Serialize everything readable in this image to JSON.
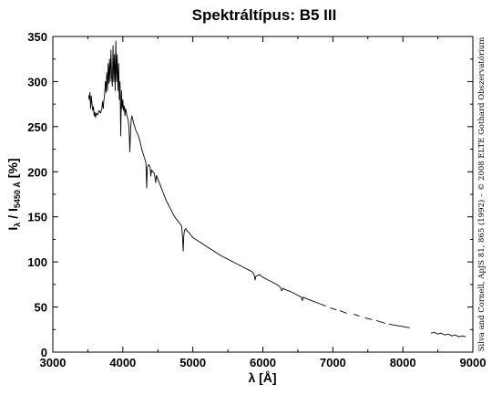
{
  "chart_data": {
    "type": "line",
    "title": "Spektráltípus: B5 III",
    "xlabel": "λ [Å]",
    "ylabel": {
      "main": "I",
      "sub1": "λ",
      "mid": " / I",
      "sub2": "5450 Å",
      "end": " [%]"
    },
    "credit": "Silva and Cornell, ApJS 81, 865 (1992) – © 2008 ELTE Gothard Obszervatórium",
    "xlim": [
      3000,
      9000
    ],
    "ylim": [
      0,
      350
    ],
    "xticks": [
      3000,
      4000,
      5000,
      6000,
      7000,
      8000,
      9000
    ],
    "yticks": [
      0,
      50,
      100,
      150,
      200,
      250,
      300,
      350
    ],
    "grid": false,
    "series": [
      {
        "segments": [
          [
            [
              3510,
              285
            ],
            [
              3520,
              280
            ],
            [
              3530,
              288
            ],
            [
              3540,
              270
            ],
            [
              3550,
              284
            ],
            [
              3560,
              275
            ],
            [
              3570,
              268
            ],
            [
              3580,
              272
            ],
            [
              3590,
              262
            ],
            [
              3600,
              266
            ],
            [
              3610,
              260
            ],
            [
              3620,
              265
            ],
            [
              3640,
              263
            ],
            [
              3660,
              268
            ],
            [
              3680,
              265
            ],
            [
              3700,
              270
            ],
            [
              3710,
              278
            ],
            [
              3720,
              270
            ],
            [
              3730,
              280
            ],
            [
              3740,
              285
            ],
            [
              3750,
              300
            ],
            [
              3760,
              288
            ],
            [
              3770,
              310
            ],
            [
              3780,
              290
            ],
            [
              3790,
              320
            ],
            [
              3800,
              298
            ],
            [
              3810,
              325
            ],
            [
              3820,
              300
            ],
            [
              3830,
              335
            ],
            [
              3840,
              305
            ],
            [
              3850,
              295
            ],
            [
              3860,
              340
            ],
            [
              3870,
              300
            ],
            [
              3880,
              330
            ],
            [
              3890,
              290
            ],
            [
              3900,
              345
            ],
            [
              3910,
              300
            ],
            [
              3920,
              330
            ],
            [
              3930,
              290
            ],
            [
              3940,
              320
            ],
            [
              3950,
              280
            ],
            [
              3960,
              300
            ],
            [
              3970,
              240
            ],
            [
              3980,
              290
            ],
            [
              3990,
              270
            ],
            [
              4000,
              280
            ],
            [
              4010,
              268
            ],
            [
              4020,
              273
            ],
            [
              4030,
              262
            ],
            [
              4040,
              270
            ],
            [
              4060,
              262
            ],
            [
              4080,
              255
            ],
            [
              4090,
              245
            ],
            [
              4100,
              222
            ],
            [
              4110,
              245
            ],
            [
              4120,
              258
            ],
            [
              4130,
              262
            ],
            [
              4150,
              255
            ],
            [
              4170,
              250
            ],
            [
              4190,
              245
            ],
            [
              4210,
              242
            ],
            [
              4230,
              238
            ],
            [
              4250,
              232
            ],
            [
              4270,
              225
            ],
            [
              4290,
              220
            ],
            [
              4310,
              215
            ],
            [
              4330,
              210
            ],
            [
              4340,
              182
            ],
            [
              4350,
              205
            ],
            [
              4370,
              208
            ],
            [
              4390,
              205
            ],
            [
              4400,
              195
            ],
            [
              4410,
              202
            ],
            [
              4430,
              200
            ],
            [
              4450,
              198
            ],
            [
              4470,
              188
            ],
            [
              4480,
              196
            ],
            [
              4500,
              192
            ],
            [
              4520,
              188
            ],
            [
              4540,
              184
            ],
            [
              4560,
              180
            ],
            [
              4580,
              176
            ],
            [
              4600,
              172
            ],
            [
              4620,
              168
            ],
            [
              4640,
              165
            ],
            [
              4660,
              162
            ],
            [
              4680,
              159
            ],
            [
              4700,
              156
            ],
            [
              4720,
              153
            ],
            [
              4740,
              150
            ],
            [
              4760,
              148
            ],
            [
              4780,
              146
            ],
            [
              4800,
              144
            ],
            [
              4820,
              142
            ],
            [
              4840,
              140
            ],
            [
              4855,
              125
            ],
            [
              4862,
              112
            ],
            [
              4870,
              128
            ],
            [
              4880,
              135
            ],
            [
              4900,
              137
            ],
            [
              4920,
              134
            ],
            [
              4940,
              133
            ],
            [
              4960,
              131
            ],
            [
              4980,
              129
            ],
            [
              5000,
              127
            ],
            [
              5100,
              122
            ],
            [
              5200,
              117
            ],
            [
              5300,
              112
            ],
            [
              5400,
              107
            ],
            [
              5500,
              103
            ],
            [
              5600,
              99
            ],
            [
              5700,
              95
            ],
            [
              5800,
              91
            ],
            [
              5850,
              89
            ],
            [
              5875,
              86
            ],
            [
              5890,
              80
            ],
            [
              5900,
              84
            ],
            [
              5950,
              86
            ],
            [
              6000,
              83
            ],
            [
              6100,
              79
            ],
            [
              6200,
              75
            ],
            [
              6250,
              72
            ],
            [
              6270,
              68
            ],
            [
              6290,
              71
            ],
            [
              6300,
              70
            ],
            [
              6400,
              67
            ],
            [
              6500,
              63
            ],
            [
              6550,
              61
            ],
            [
              6563,
              57
            ],
            [
              6575,
              61
            ],
            [
              6600,
              60
            ],
            [
              6700,
              57
            ],
            [
              6800,
              54
            ],
            [
              6900,
              51
            ]
          ],
          [
            [
              6960,
              49
            ],
            [
              7050,
              47
            ]
          ],
          [
            [
              7100,
              46
            ],
            [
              7200,
              43
            ]
          ],
          [
            [
              7300,
              42
            ],
            [
              7380,
              40
            ]
          ],
          [
            [
              7460,
              38
            ],
            [
              7560,
              36
            ]
          ],
          [
            [
              7620,
              35
            ],
            [
              7750,
              32
            ]
          ],
          [
            [
              7800,
              31
            ],
            [
              8100,
              27
            ]
          ],
          [
            [
              8400,
              21
            ],
            [
              8450,
              22
            ],
            [
              8500,
              20
            ],
            [
              8550,
              21
            ],
            [
              8600,
              19
            ],
            [
              8650,
              20
            ],
            [
              8700,
              18
            ],
            [
              8750,
              19
            ],
            [
              8800,
              17
            ],
            [
              8850,
              18
            ],
            [
              8900,
              17
            ]
          ]
        ]
      }
    ]
  }
}
